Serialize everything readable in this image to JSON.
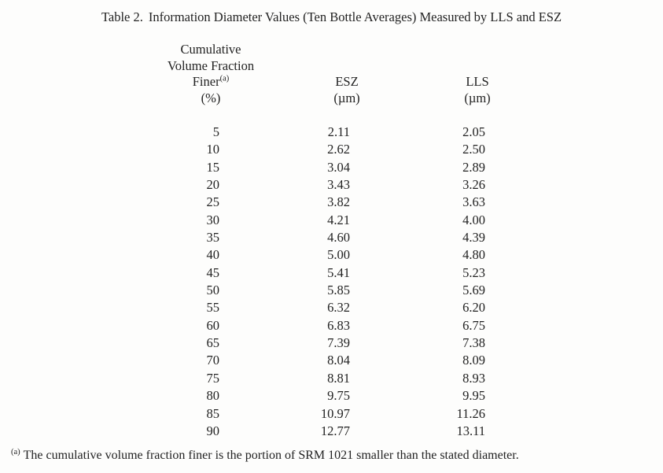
{
  "title": {
    "label": "Table 2.",
    "text": "Information Diameter Values (Ten Bottle Averages) Measured by LLS and ESZ"
  },
  "table": {
    "header": {
      "fraction_line1": "Cumulative",
      "fraction_line2": "Volume Fraction",
      "fraction_line3": "Finer",
      "fraction_sup": "(a)",
      "fraction_line4": "(%)",
      "esz_name": "ESZ",
      "esz_unit": "(µm)",
      "lls_name": "LLS",
      "lls_unit": "(µm)"
    },
    "rows": [
      {
        "percent": "5",
        "esz": "2.11",
        "lls": "2.05"
      },
      {
        "percent": "10",
        "esz": "2.62",
        "lls": "2.50"
      },
      {
        "percent": "15",
        "esz": "3.04",
        "lls": "2.89"
      },
      {
        "percent": "20",
        "esz": "3.43",
        "lls": "3.26"
      },
      {
        "percent": "25",
        "esz": "3.82",
        "lls": "3.63"
      },
      {
        "percent": "30",
        "esz": "4.21",
        "lls": "4.00"
      },
      {
        "percent": "35",
        "esz": "4.60",
        "lls": "4.39"
      },
      {
        "percent": "40",
        "esz": "5.00",
        "lls": "4.80"
      },
      {
        "percent": "45",
        "esz": "5.41",
        "lls": "5.23"
      },
      {
        "percent": "50",
        "esz": "5.85",
        "lls": "5.69"
      },
      {
        "percent": "55",
        "esz": "6.32",
        "lls": "6.20"
      },
      {
        "percent": "60",
        "esz": "6.83",
        "lls": "6.75"
      },
      {
        "percent": "65",
        "esz": "7.39",
        "lls": "7.38"
      },
      {
        "percent": "70",
        "esz": "8.04",
        "lls": "8.09"
      },
      {
        "percent": "75",
        "esz": "8.81",
        "lls": "8.93"
      },
      {
        "percent": "80",
        "esz": "9.75",
        "lls": "9.95"
      },
      {
        "percent": "85",
        "esz": "10.97",
        "lls": "11.26"
      },
      {
        "percent": "90",
        "esz": "12.77",
        "lls": "13.11"
      }
    ]
  },
  "footnote": {
    "marker": "(a)",
    "text": "The cumulative volume fraction finer is the portion of SRM 1021 smaller than the stated diameter."
  },
  "chart_data": {
    "type": "table",
    "title": "Table 2. Information Diameter Values (Ten Bottle Averages) Measured by LLS and ESZ",
    "columns": [
      "Cumulative Volume Fraction Finer (%)",
      "ESZ (µm)",
      "LLS (µm)"
    ],
    "x": [
      5,
      10,
      15,
      20,
      25,
      30,
      35,
      40,
      45,
      50,
      55,
      60,
      65,
      70,
      75,
      80,
      85,
      90
    ],
    "series": [
      {
        "name": "ESZ (µm)",
        "values": [
          2.11,
          2.62,
          3.04,
          3.43,
          3.82,
          4.21,
          4.6,
          5.0,
          5.41,
          5.85,
          6.32,
          6.83,
          7.39,
          8.04,
          8.81,
          9.75,
          10.97,
          12.77
        ]
      },
      {
        "name": "LLS (µm)",
        "values": [
          2.05,
          2.5,
          2.89,
          3.26,
          3.63,
          4.0,
          4.39,
          4.8,
          5.23,
          5.69,
          6.2,
          6.75,
          7.38,
          8.09,
          8.93,
          9.95,
          11.26,
          13.11
        ]
      }
    ]
  }
}
